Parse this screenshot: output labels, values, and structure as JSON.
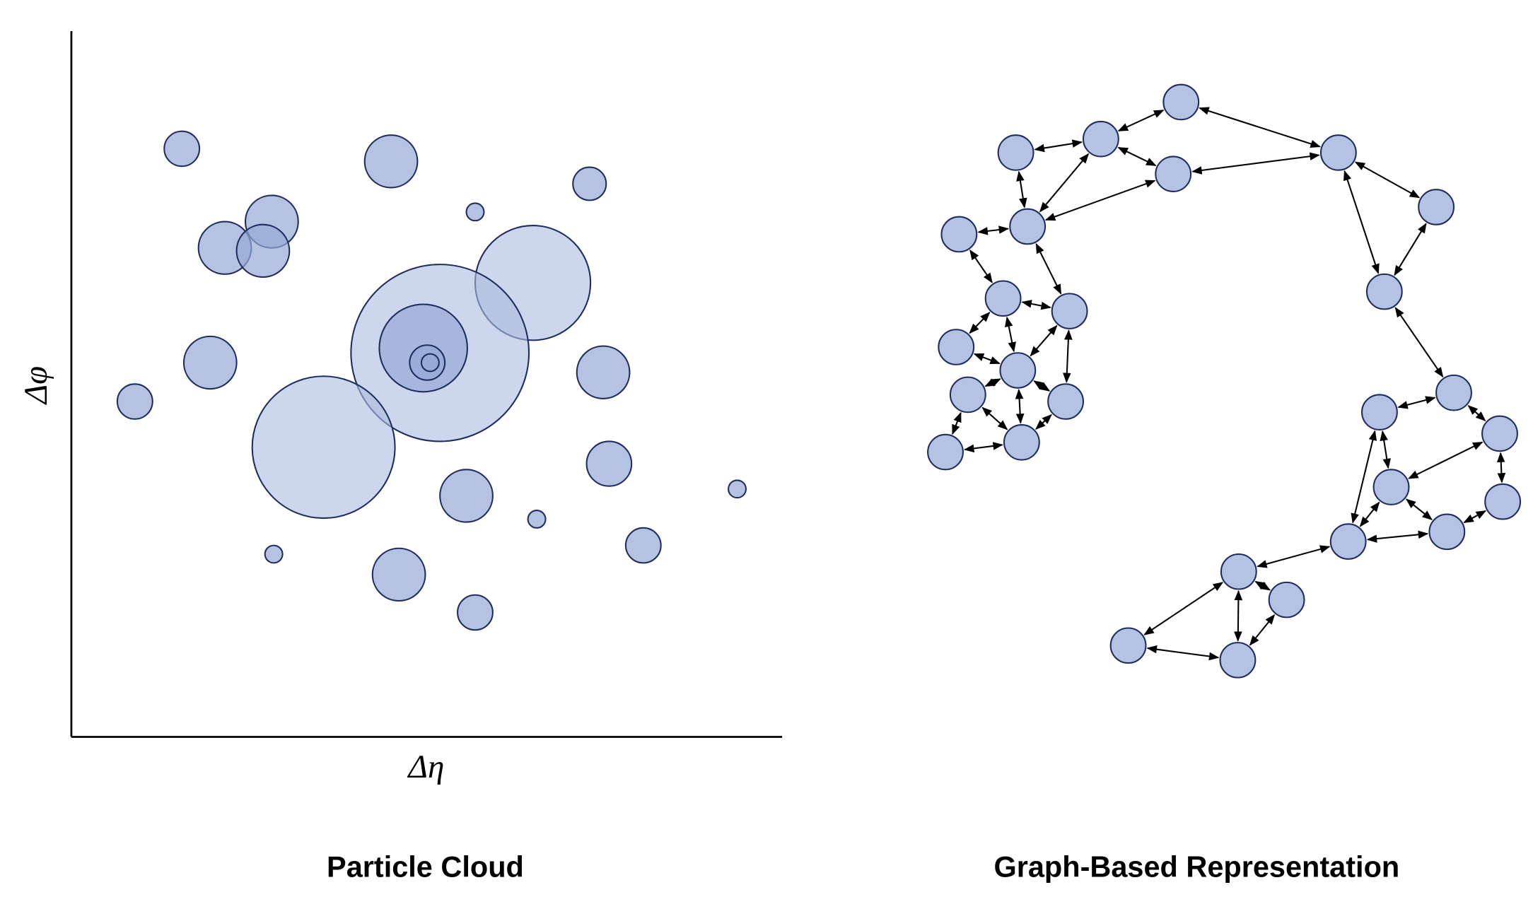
{
  "left_panel": {
    "y_axis_label": "Δφ",
    "x_axis_label": "Δη",
    "caption": "Particle Cloud"
  },
  "right_panel": {
    "caption": "Graph-Based Representation"
  }
}
